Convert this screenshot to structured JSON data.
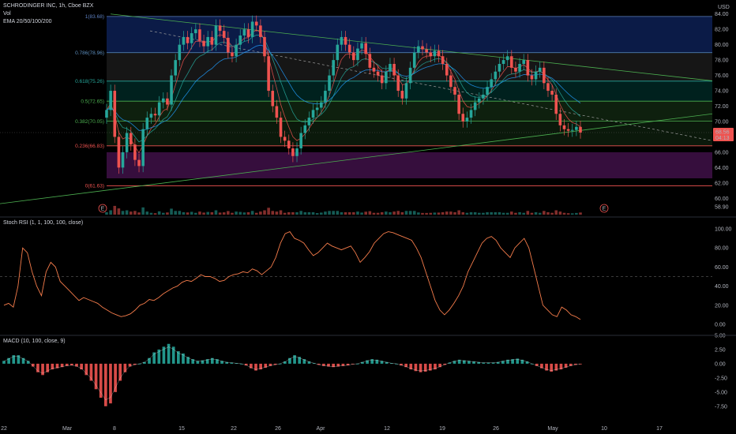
{
  "header": {
    "symbol": "SCHRODINGER INC, 1h, Cboe BZX",
    "vol_label": "Vol",
    "ema_label": "EMA 20/50/100/200",
    "currency": "USD"
  },
  "price_now": "68.56",
  "countdown": "04:13",
  "colors": {
    "up": "#26a69a",
    "down": "#ef5350",
    "rsi": "#f57c4b",
    "macd_line": "#ffffff"
  },
  "chart_data": [
    {
      "type": "candlestick",
      "title": "SCHRODINGER INC, 1h, Cboe BZX",
      "y_ticks": [
        "84.00",
        "82.00",
        "80.00",
        "78.00",
        "76.00",
        "74.00",
        "72.00",
        "70.00",
        "68.00",
        "66.00",
        "64.00",
        "62.00",
        "60.00",
        "58.90"
      ],
      "ylim": [
        58.9,
        85.0
      ],
      "x_labels": [
        "22",
        "Mar",
        "8",
        "15",
        "22",
        "26",
        "Apr",
        "12",
        "19",
        "26",
        "May",
        "10",
        "17"
      ],
      "fib_levels": [
        {
          "label": "1(83.68)",
          "value": 83.68
        },
        {
          "label": "0.786(78.96)",
          "value": 78.96
        },
        {
          "label": "0.618(75.26)",
          "value": 75.26
        },
        {
          "label": "0.5(72.65)",
          "value": 72.65
        },
        {
          "label": "0.382(70.05)",
          "value": 70.05
        },
        {
          "label": "0.236(66.83)",
          "value": 66.83
        },
        {
          "label": "0(61.63)",
          "value": 61.63
        }
      ],
      "earnings_markers": [
        "E",
        "E"
      ],
      "close": [
        71.5,
        74.0,
        68.0,
        64.0,
        66.0,
        68.5,
        67.0,
        65.0,
        64.2,
        69.0,
        70.5,
        71.0,
        70.8,
        72.5,
        73.0,
        72.2,
        76.0,
        78.0,
        80.0,
        81.0,
        80.2,
        81.5,
        82.0,
        80.5,
        79.8,
        81.0,
        80.0,
        82.5,
        81.8,
        80.9,
        79.0,
        78.5,
        80.0,
        81.2,
        82.0,
        81.0,
        83.0,
        82.5,
        81.0,
        78.5,
        74.0,
        72.0,
        70.5,
        68.0,
        67.5,
        66.5,
        65.5,
        66.5,
        68.5,
        69.5,
        70.5,
        71.5,
        71.8,
        72.5,
        74.0,
        76.0,
        78.0,
        80.0,
        81.0,
        80.0,
        79.0,
        78.0,
        79.5,
        80.2,
        78.8,
        77.0,
        76.5,
        76.0,
        75.0,
        76.5,
        77.5,
        76.0,
        74.0,
        73.0,
        75.0,
        77.0,
        79.0,
        79.8,
        79.4,
        79.0,
        78.5,
        79.2,
        78.5,
        77.5,
        76.0,
        74.5,
        73.5,
        71.0,
        70.0,
        70.5,
        71.5,
        72.5,
        73.0,
        73.5,
        74.5,
        75.5,
        76.5,
        77.5,
        78.0,
        78.5,
        77.0,
        76.5,
        77.5,
        78.0,
        76.0,
        75.5,
        76.5,
        77.0,
        75.0,
        74.0,
        73.5,
        71.0,
        69.5,
        69.0,
        68.8,
        68.9,
        69.3,
        68.56
      ]
    },
    {
      "type": "line",
      "title": "Stoch RSI (1, 1, 100, 100, close)",
      "y_ticks": [
        "100.00",
        "80.00",
        "60.00",
        "40.00",
        "20.00",
        "0.00"
      ],
      "ylim": [
        0,
        100
      ],
      "values": [
        20,
        22,
        18,
        40,
        80,
        75,
        55,
        40,
        30,
        55,
        65,
        60,
        45,
        40,
        35,
        30,
        25,
        28,
        26,
        24,
        22,
        18,
        15,
        12,
        10,
        8,
        9,
        11,
        15,
        20,
        22,
        26,
        25,
        28,
        32,
        35,
        38,
        40,
        44,
        46,
        45,
        48,
        52,
        50,
        50,
        48,
        45,
        46,
        50,
        52,
        53,
        55,
        54,
        58,
        56,
        52,
        56,
        60,
        70,
        85,
        95,
        97,
        90,
        88,
        85,
        78,
        72,
        75,
        80,
        85,
        82,
        80,
        78,
        80,
        82,
        75,
        65,
        70,
        76,
        85,
        90,
        95,
        97,
        96,
        94,
        92,
        90,
        88,
        80,
        70,
        55,
        40,
        25,
        15,
        10,
        15,
        22,
        30,
        40,
        55,
        65,
        75,
        85,
        90,
        92,
        88,
        80,
        75,
        70,
        80,
        85,
        90,
        80,
        60,
        40,
        20,
        15,
        10,
        8,
        18,
        15,
        10,
        8,
        5
      ]
    },
    {
      "type": "bar",
      "title": "MACD (10, 100, close, 9)",
      "y_ticks": [
        "5.00",
        "2.50",
        "0.00",
        "-2.50",
        "-5.00",
        "-7.50"
      ],
      "ylim": [
        -8.5,
        5.0
      ],
      "values": [
        0.5,
        1.0,
        1.5,
        1.5,
        1.0,
        0.5,
        -0.5,
        -1.5,
        -2.0,
        -1.5,
        -1.0,
        -0.8,
        -0.6,
        -0.4,
        -0.3,
        -0.5,
        -1.0,
        -2.0,
        -3.0,
        -4.5,
        -6.0,
        -7.5,
        -7.0,
        -5.0,
        -3.0,
        -1.5,
        -0.5,
        -0.2,
        0.0,
        0.3,
        1.0,
        2.0,
        2.5,
        3.0,
        3.5,
        3.0,
        2.2,
        1.8,
        1.2,
        0.8,
        0.5,
        0.6,
        0.8,
        1.0,
        0.8,
        0.5,
        0.3,
        0.2,
        0.1,
        0.0,
        -0.3,
        -0.8,
        -1.2,
        -1.0,
        -0.7,
        -0.4,
        -0.2,
        0.0,
        0.4,
        1.0,
        1.5,
        1.2,
        0.8,
        0.4,
        0.1,
        -0.2,
        -0.4,
        -0.5,
        -0.6,
        -0.5,
        -0.4,
        -0.3,
        -0.1,
        0.0,
        0.3,
        0.6,
        0.8,
        0.7,
        0.5,
        0.3,
        0.1,
        0.0,
        -0.3,
        -0.6,
        -1.0,
        -1.3,
        -1.5,
        -1.4,
        -1.2,
        -1.0,
        -0.6,
        -0.2,
        0.2,
        0.5,
        0.7,
        0.6,
        0.5,
        0.4,
        0.3,
        0.2,
        0.2,
        0.2,
        0.3,
        0.5,
        0.7,
        0.8,
        0.9,
        0.7,
        0.4,
        0.0,
        -0.4,
        -0.8,
        -1.2,
        -1.4,
        -1.2,
        -1.0,
        -0.7,
        -0.4,
        -0.2,
        -0.1
      ]
    }
  ]
}
